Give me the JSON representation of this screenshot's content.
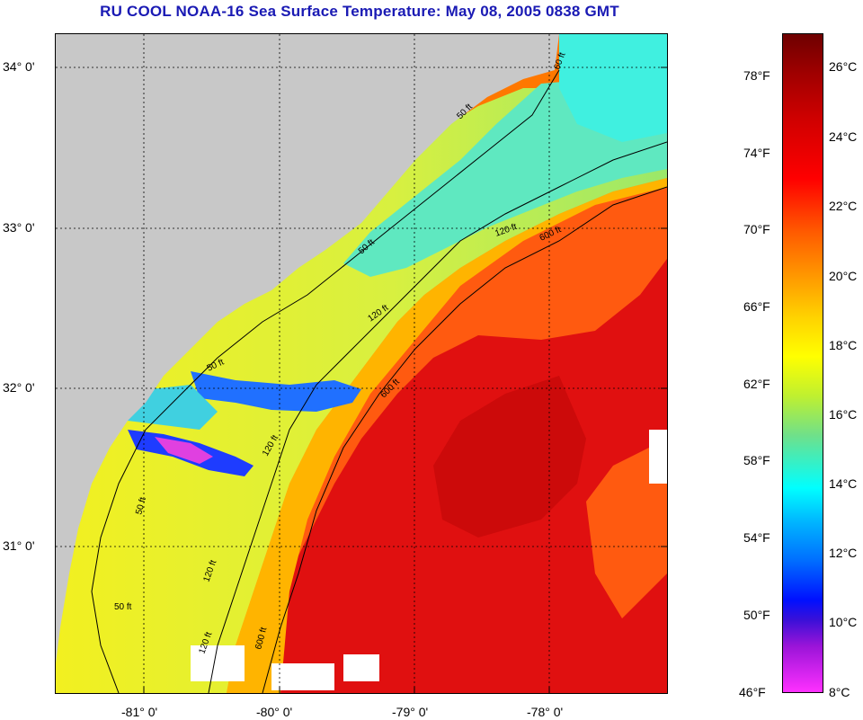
{
  "title": "RU COOL  NOAA-16  Sea Surface Temperature:  May 08, 2005 0838 GMT",
  "lat_labels": [
    "34° 0'",
    "33° 0'",
    "32° 0'",
    "31° 0'"
  ],
  "lon_labels": [
    "-81° 0'",
    "-80° 0'",
    "-79° 0'",
    "-78° 0'"
  ],
  "isobath_labels": [
    "50 ft",
    "50 ft",
    "50 ft",
    "50 ft",
    "50 ft",
    "120 ft",
    "120 ft",
    "120 ft",
    "120 ft",
    "120 ft",
    "600 ft",
    "600 ft",
    "600 ft",
    "60 ft"
  ],
  "colorbar": {
    "fahrenheit": [
      "78°F",
      "74°F",
      "70°F",
      "66°F",
      "62°F",
      "58°F",
      "54°F",
      "50°F",
      "46°F"
    ],
    "celsius": [
      "26°C",
      "24°C",
      "22°C",
      "20°C",
      "18°C",
      "16°C",
      "14°C",
      "12°C",
      "10°C",
      "8°C"
    ]
  },
  "colors": {
    "land": "#c8c8c8",
    "title": "#1a1ab4"
  }
}
